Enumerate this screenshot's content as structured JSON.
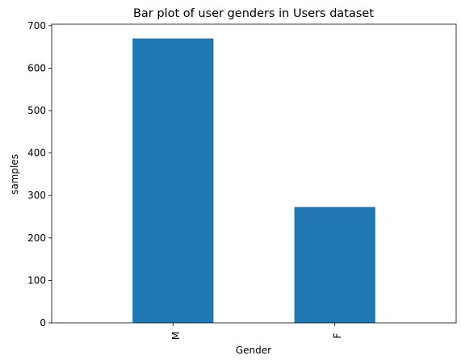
{
  "chart_data": {
    "type": "bar",
    "title": "Bar plot of user genders in Users dataset",
    "xlabel": "Gender",
    "ylabel": "samples",
    "categories": [
      "M",
      "F"
    ],
    "values": [
      670,
      273
    ],
    "ylim": [
      0,
      703.5
    ],
    "yticks": [
      0,
      100,
      200,
      300,
      400,
      500,
      600,
      700
    ],
    "ytick_labels": [
      "0",
      "100",
      "200",
      "300",
      "400",
      "500",
      "600",
      "700"
    ],
    "bar_color": "#1f77b4",
    "grid": false,
    "legend": "none"
  }
}
